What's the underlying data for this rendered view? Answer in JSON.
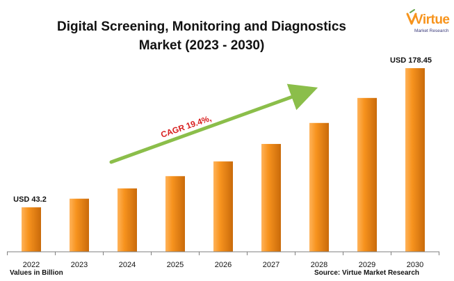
{
  "title_line1": "Digital Screening, Monitoring and Diagnostics",
  "title_line2": "Market (2023 - 2030)",
  "logo": {
    "word": "Virtue",
    "subtitle": "Market Research",
    "accent": "#f7941d"
  },
  "footnote_left": "Values in Billion",
  "footnote_right": "Source: Virtue Market Research",
  "annotation": {
    "text": "CAGR 19.4%,",
    "color": "#d81e1e",
    "arrow_color": "#8bbe4a"
  },
  "colors": {
    "bar_light": "#ffb35a",
    "bar_mid": "#f7931e",
    "bar_dark": "#c96a0a",
    "axis": "#7f7f7f"
  },
  "chart_data": {
    "type": "bar",
    "categories": [
      "2022",
      "2023",
      "2024",
      "2025",
      "2026",
      "2027",
      "2028",
      "2029",
      "2030"
    ],
    "values": [
      43.2,
      51.6,
      61.6,
      73.5,
      87.8,
      104.8,
      125.2,
      149.5,
      178.45
    ],
    "data_labels": [
      "USD 43.2",
      "",
      "",
      "",
      "",
      "",
      "",
      "",
      "USD 178.45"
    ],
    "ylim": [
      0,
      178.45
    ],
    "grid": false,
    "legend": "none",
    "title": "Digital Screening, Monitoring and Diagnostics Market (2023 - 2030)"
  }
}
